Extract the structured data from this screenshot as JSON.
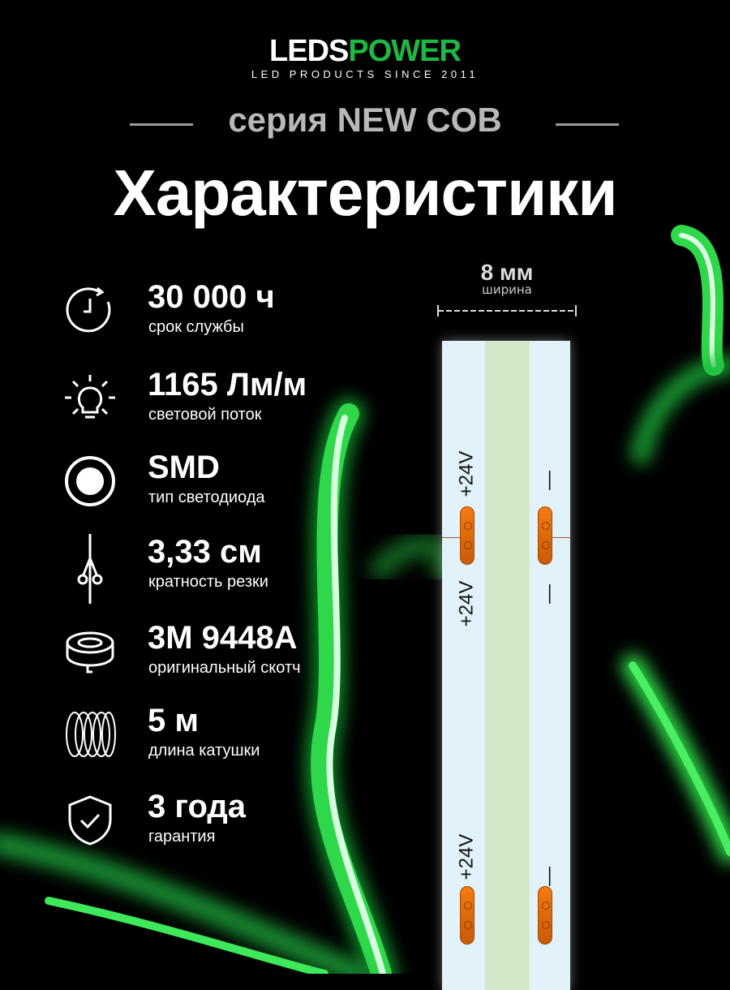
{
  "brand": {
    "logo_part1": "LEDS",
    "logo_part2": "POWER",
    "tagline": "LED PRODUCTS SINCE 2011",
    "accent": "#1db841"
  },
  "series": "серия NEW COB",
  "title": "Характеристики",
  "features": [
    {
      "icon": "clock-icon",
      "value": "30 000 ч",
      "label": "срок службы"
    },
    {
      "icon": "light-bulb-icon",
      "value": "1165 Лм/м",
      "label": "световой поток"
    },
    {
      "icon": "led-dot-icon",
      "value": "SMD",
      "label": "тип светодиода"
    },
    {
      "icon": "scissors-cut-icon",
      "value": "3,33 см",
      "label": "кратность резки"
    },
    {
      "icon": "tape-roll-icon",
      "value": "3M 9448A",
      "label": "оригинальный скотч"
    },
    {
      "icon": "coil-icon",
      "value": "5 м",
      "label": "длина катушки"
    },
    {
      "icon": "shield-check-icon",
      "value": "3 года",
      "label": "гарантия"
    }
  ],
  "strip": {
    "width_value": "8 мм",
    "width_label": "ширина",
    "plus_label": "+24V",
    "minus_label": "—"
  }
}
